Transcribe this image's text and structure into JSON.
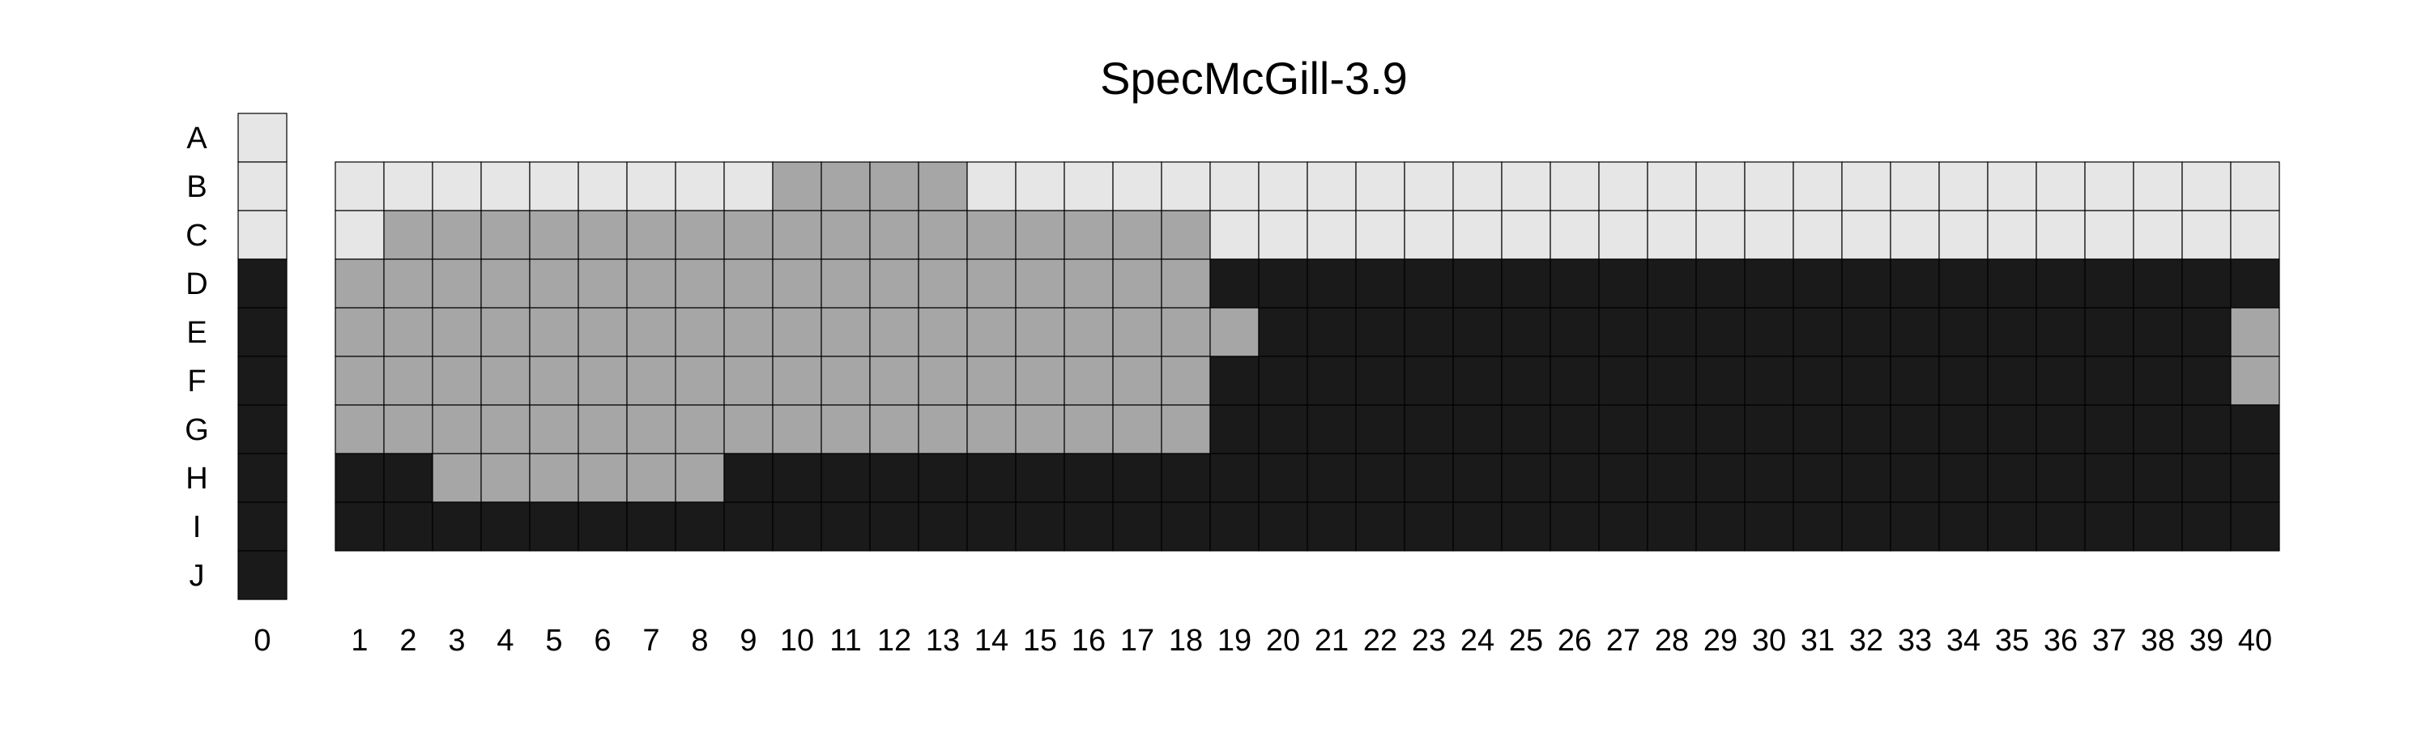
{
  "chart_data": {
    "type": "heatmap",
    "title": "SpecMcGill-3.9",
    "colors": {
      "light": "#e6e6e6",
      "mid": "#a6a6a6",
      "dark": "#1a1a1a"
    },
    "column_zero": {
      "label": "0",
      "rows": [
        "A",
        "B",
        "C",
        "D",
        "E",
        "F",
        "G",
        "H",
        "I",
        "J"
      ],
      "values": [
        "light",
        "light",
        "light",
        "dark",
        "dark",
        "dark",
        "dark",
        "dark",
        "dark",
        "dark"
      ]
    },
    "grid": {
      "rows": [
        "B",
        "C",
        "D",
        "E",
        "F",
        "G",
        "H",
        "I"
      ],
      "columns": [
        "1",
        "2",
        "3",
        "4",
        "5",
        "6",
        "7",
        "8",
        "9",
        "10",
        "11",
        "12",
        "13",
        "14",
        "15",
        "16",
        "17",
        "18",
        "19",
        "20",
        "21",
        "22",
        "23",
        "24",
        "25",
        "26",
        "27",
        "28",
        "29",
        "30",
        "31",
        "32",
        "33",
        "34",
        "35",
        "36",
        "37",
        "38",
        "39",
        "40"
      ],
      "values": [
        [
          "light",
          "light",
          "light",
          "light",
          "light",
          "light",
          "light",
          "light",
          "light",
          "mid",
          "mid",
          "mid",
          "mid",
          "light",
          "light",
          "light",
          "light",
          "light",
          "light",
          "light",
          "light",
          "light",
          "light",
          "light",
          "light",
          "light",
          "light",
          "light",
          "light",
          "light",
          "light",
          "light",
          "light",
          "light",
          "light",
          "light",
          "light",
          "light",
          "light",
          "light"
        ],
        [
          "light",
          "mid",
          "mid",
          "mid",
          "mid",
          "mid",
          "mid",
          "mid",
          "mid",
          "mid",
          "mid",
          "mid",
          "mid",
          "mid",
          "mid",
          "mid",
          "mid",
          "mid",
          "light",
          "light",
          "light",
          "light",
          "light",
          "light",
          "light",
          "light",
          "light",
          "light",
          "light",
          "light",
          "light",
          "light",
          "light",
          "light",
          "light",
          "light",
          "light",
          "light",
          "light",
          "light"
        ],
        [
          "mid",
          "mid",
          "mid",
          "mid",
          "mid",
          "mid",
          "mid",
          "mid",
          "mid",
          "mid",
          "mid",
          "mid",
          "mid",
          "mid",
          "mid",
          "mid",
          "mid",
          "mid",
          "dark",
          "dark",
          "dark",
          "dark",
          "dark",
          "dark",
          "dark",
          "dark",
          "dark",
          "dark",
          "dark",
          "dark",
          "dark",
          "dark",
          "dark",
          "dark",
          "dark",
          "dark",
          "dark",
          "dark",
          "dark",
          "dark"
        ],
        [
          "mid",
          "mid",
          "mid",
          "mid",
          "mid",
          "mid",
          "mid",
          "mid",
          "mid",
          "mid",
          "mid",
          "mid",
          "mid",
          "mid",
          "mid",
          "mid",
          "mid",
          "mid",
          "mid",
          "dark",
          "dark",
          "dark",
          "dark",
          "dark",
          "dark",
          "dark",
          "dark",
          "dark",
          "dark",
          "dark",
          "dark",
          "dark",
          "dark",
          "dark",
          "dark",
          "dark",
          "dark",
          "dark",
          "dark",
          "mid"
        ],
        [
          "mid",
          "mid",
          "mid",
          "mid",
          "mid",
          "mid",
          "mid",
          "mid",
          "mid",
          "mid",
          "mid",
          "mid",
          "mid",
          "mid",
          "mid",
          "mid",
          "mid",
          "mid",
          "dark",
          "dark",
          "dark",
          "dark",
          "dark",
          "dark",
          "dark",
          "dark",
          "dark",
          "dark",
          "dark",
          "dark",
          "dark",
          "dark",
          "dark",
          "dark",
          "dark",
          "dark",
          "dark",
          "dark",
          "dark",
          "mid"
        ],
        [
          "mid",
          "mid",
          "mid",
          "mid",
          "mid",
          "mid",
          "mid",
          "mid",
          "mid",
          "mid",
          "mid",
          "mid",
          "mid",
          "mid",
          "mid",
          "mid",
          "mid",
          "mid",
          "dark",
          "dark",
          "dark",
          "dark",
          "dark",
          "dark",
          "dark",
          "dark",
          "dark",
          "dark",
          "dark",
          "dark",
          "dark",
          "dark",
          "dark",
          "dark",
          "dark",
          "dark",
          "dark",
          "dark",
          "dark",
          "dark"
        ],
        [
          "dark",
          "dark",
          "mid",
          "mid",
          "mid",
          "mid",
          "mid",
          "mid",
          "dark",
          "dark",
          "dark",
          "dark",
          "dark",
          "dark",
          "dark",
          "dark",
          "dark",
          "dark",
          "dark",
          "dark",
          "dark",
          "dark",
          "dark",
          "dark",
          "dark",
          "dark",
          "dark",
          "dark",
          "dark",
          "dark",
          "dark",
          "dark",
          "dark",
          "dark",
          "dark",
          "dark",
          "dark",
          "dark",
          "dark",
          "dark"
        ],
        [
          "dark",
          "dark",
          "dark",
          "dark",
          "dark",
          "dark",
          "dark",
          "dark",
          "dark",
          "dark",
          "dark",
          "dark",
          "dark",
          "dark",
          "dark",
          "dark",
          "dark",
          "dark",
          "dark",
          "dark",
          "dark",
          "dark",
          "dark",
          "dark",
          "dark",
          "dark",
          "dark",
          "dark",
          "dark",
          "dark",
          "dark",
          "dark",
          "dark",
          "dark",
          "dark",
          "dark",
          "dark",
          "dark",
          "dark",
          "dark"
        ]
      ]
    }
  }
}
